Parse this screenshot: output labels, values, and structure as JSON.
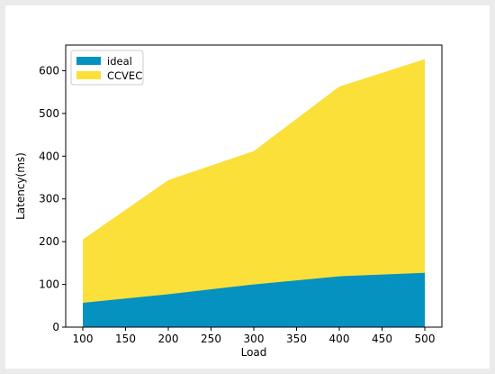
{
  "chart_data": {
    "type": "area",
    "stacked": false,
    "x": [
      100,
      200,
      300,
      400,
      500
    ],
    "series": [
      {
        "name": "CCVEC",
        "values": [
          205,
          344,
          412,
          563,
          627
        ],
        "color": "#fbe03a"
      },
      {
        "name": "ideal",
        "values": [
          57,
          77,
          100,
          119,
          127
        ],
        "color": "#0592c1"
      }
    ],
    "legend_order": [
      "ideal",
      "CCVEC"
    ],
    "title": "",
    "xlabel": "Load",
    "ylabel": "Latency(ms)",
    "xlim": [
      80,
      520
    ],
    "ylim": [
      0,
      660
    ],
    "xticks": [
      100,
      150,
      200,
      250,
      300,
      350,
      400,
      450,
      500
    ],
    "yticks": [
      0,
      100,
      200,
      300,
      400,
      500,
      600
    ],
    "grid": false,
    "legend_position": "top-left"
  }
}
